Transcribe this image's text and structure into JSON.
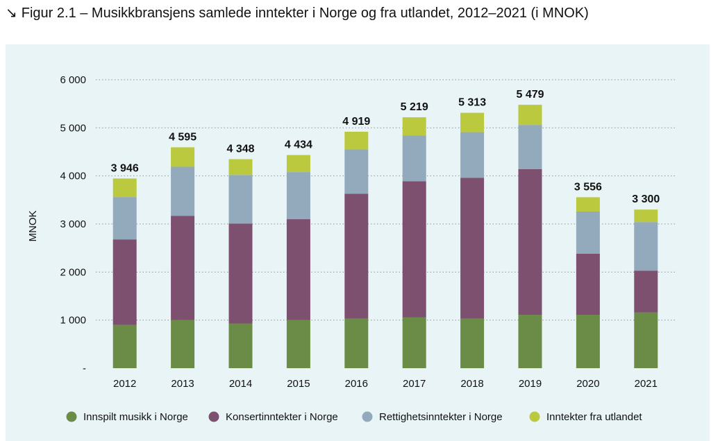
{
  "figure": {
    "arrow": "↘",
    "title": "Figur 2.1 – Musikkbransjens samlede inntekter i Norge og fra utlandet, 2012–2021 (i MNOK)"
  },
  "chart_data": {
    "type": "bar",
    "stacked": true,
    "title": "Figur 2.1 – Musikkbransjens samlede inntekter i Norge og fra utlandet, 2012–2021 (i MNOK)",
    "ylabel": "MNOK",
    "xlabel": "",
    "ylim": [
      0,
      6000
    ],
    "yticks": [
      0,
      1000,
      2000,
      3000,
      4000,
      5000,
      6000
    ],
    "ytick_labels": [
      "-",
      "1 000",
      "2 000",
      "3 000",
      "4 000",
      "5 000",
      "6 000"
    ],
    "grid": true,
    "legend_position": "bottom",
    "categories": [
      "2012",
      "2013",
      "2014",
      "2015",
      "2016",
      "2017",
      "2018",
      "2019",
      "2020",
      "2021"
    ],
    "series": [
      {
        "name": "Innspilt musikk i Norge",
        "color": "#6b8c47",
        "values": [
          900,
          1000,
          930,
          1000,
          1030,
          1060,
          1030,
          1110,
          1110,
          1160
        ]
      },
      {
        "name": "Konsertinntekter i Norge",
        "color": "#7d5070",
        "values": [
          1780,
          2170,
          2080,
          2100,
          2600,
          2830,
          2930,
          3030,
          1270,
          870
        ]
      },
      {
        "name": "Rettighetsinntekter i Norge",
        "color": "#93a9bc",
        "values": [
          880,
          1020,
          1010,
          980,
          920,
          950,
          950,
          920,
          880,
          1010
        ]
      },
      {
        "name": "Inntekter fra utlandet",
        "color": "#bac93e",
        "values": [
          386,
          405,
          328,
          354,
          369,
          379,
          403,
          419,
          296,
          260
        ]
      }
    ],
    "totals": [
      3946,
      4595,
      4348,
      4434,
      4919,
      5219,
      5313,
      5479,
      3556,
      3300
    ],
    "total_labels": [
      "3 946",
      "4 595",
      "4 348",
      "4 434",
      "4 919",
      "5 219",
      "5 313",
      "5 479",
      "3 556",
      "3 300"
    ]
  }
}
